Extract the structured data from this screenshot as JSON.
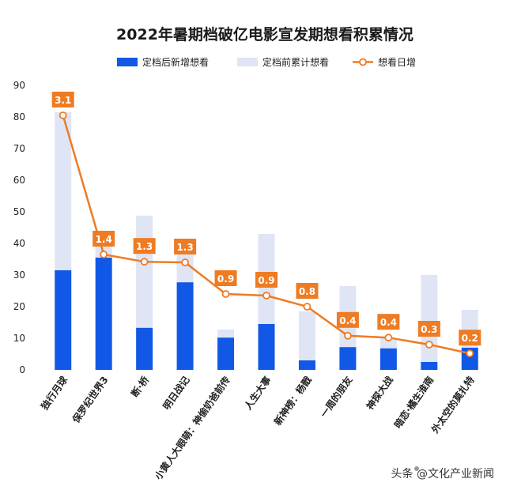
{
  "chart_data": {
    "type": "bar",
    "title": "2022年暑期档破亿电影宣发期想看积累情况",
    "categories": [
      "独行月球",
      "保罗纪世界3",
      "断·桥",
      "明日战记",
      "小黄人大眼萌：神偷奶爸前传",
      "人生大事",
      "新神榜：杨戬",
      "一周的朋友",
      "神探大战",
      "暗恋·橘生淮南",
      "外太空的莫扎特"
    ],
    "series": [
      {
        "name": "定档后新增想看",
        "kind": "stacked-bar",
        "color": "#1158e6",
        "values": [
          31.5,
          35.5,
          13.3,
          27.7,
          10.2,
          14.5,
          3.0,
          7.2,
          6.8,
          2.5,
          7.0
        ]
      },
      {
        "name": "定档前累计想看",
        "kind": "stacked-bar",
        "color": "#dfe5f5",
        "values": [
          50.0,
          3.5,
          35.5,
          9.3,
          2.6,
          28.5,
          15.5,
          19.3,
          3.2,
          27.5,
          12.0
        ]
      },
      {
        "name": "想看日增",
        "kind": "line",
        "color": "#ef7b23",
        "labels": [
          "3.1",
          "1.4",
          "1.3",
          "1.3",
          "0.9",
          "0.9",
          "0.8",
          "0.4",
          "0.4",
          "0.3",
          "0.2"
        ],
        "values": [
          80.5,
          36.5,
          34.2,
          34.0,
          24.0,
          23.5,
          20.0,
          10.8,
          10.2,
          8.0,
          5.2
        ]
      }
    ],
    "ylim": [
      0,
      90
    ],
    "yticks": [
      0,
      10,
      20,
      30,
      40,
      50,
      60,
      70,
      80,
      90
    ],
    "grid": false,
    "legend_position": "top-center"
  },
  "watermark": "头条 @文化产业新闻"
}
